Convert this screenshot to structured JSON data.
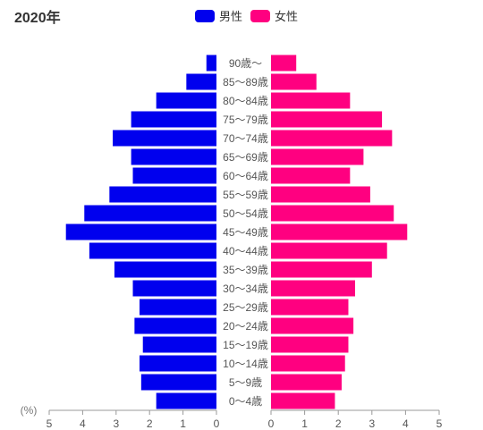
{
  "chart_data": {
    "type": "bar",
    "title": "2020年",
    "unit_label": "(%)",
    "categories": [
      "90歳〜",
      "85〜89歳",
      "80〜84歳",
      "75〜79歳",
      "70〜74歳",
      "65〜69歳",
      "60〜64歳",
      "55〜59歳",
      "50〜54歳",
      "45〜49歳",
      "40〜44歳",
      "35〜39歳",
      "30〜34歳",
      "25〜29歳",
      "20〜24歳",
      "15〜19歳",
      "10〜14歳",
      "5〜9歳",
      "0〜4歳"
    ],
    "series": [
      {
        "name": "男性",
        "color": "#0000ee",
        "values": [
          0.3,
          0.9,
          1.8,
          2.55,
          3.1,
          2.55,
          2.5,
          3.2,
          3.95,
          4.5,
          3.8,
          3.05,
          2.5,
          2.3,
          2.45,
          2.2,
          2.3,
          2.25,
          1.8
        ]
      },
      {
        "name": "女性",
        "color": "#ff0080",
        "values": [
          0.75,
          1.35,
          2.35,
          3.3,
          3.6,
          2.75,
          2.35,
          2.95,
          3.65,
          4.05,
          3.45,
          3.0,
          2.5,
          2.3,
          2.45,
          2.3,
          2.2,
          2.1,
          1.9
        ]
      }
    ],
    "xlim": [
      0,
      5
    ],
    "xticks": [
      0,
      1,
      2,
      3,
      4,
      5
    ],
    "legend_position": "top-center"
  }
}
